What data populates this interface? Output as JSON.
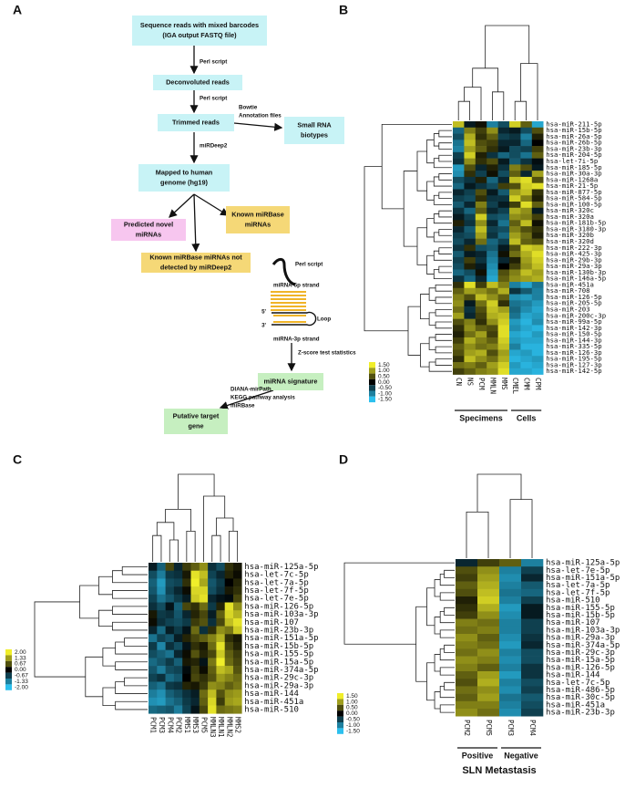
{
  "diagram": {
    "label": "A",
    "nodes": [
      {
        "lines": [
          "Sequence reads with mixed barcodes",
          "(IGA output FASTQ file)"
        ]
      },
      {
        "lines": [
          "Deconvoluted reads"
        ]
      },
      {
        "lines": [
          "Trimmed reads"
        ]
      },
      {
        "lines": [
          "Small RNA",
          "biotypes"
        ]
      },
      {
        "lines": [
          "Mapped to human",
          "genome (hg19)"
        ]
      },
      {
        "lines": [
          "Predicted novel",
          "miRNAs"
        ]
      },
      {
        "lines": [
          "Known miRBase",
          "miRNAs"
        ]
      },
      {
        "lines": [
          "Known miRBase miRNAs not",
          "detected by miRDeep2"
        ]
      },
      {
        "lines": [
          "miRNA signature"
        ]
      },
      {
        "lines": [
          "Putative target",
          "gene"
        ]
      }
    ],
    "edge_labels": [
      [
        "Perl script"
      ],
      [
        "Perl script"
      ],
      [
        "Bowtie",
        "Annotation files"
      ],
      [
        "miRDeep2"
      ],
      [
        "Perl script"
      ],
      [
        "Z-score test statistics"
      ],
      [
        "DIANA-mirPath",
        "KEGG pathway analysis",
        "miRBase"
      ]
    ],
    "hairpin_labels": [
      "miRNA-5p strand",
      "5'",
      "3'",
      "Loop",
      "miRNA-3p strand"
    ]
  },
  "chart_data": [
    {
      "type": "heatmap",
      "label": "B",
      "columns": [
        "CN",
        "NS",
        "PCM",
        "MMLN",
        "MMS",
        "CMEL",
        "CMM",
        "CPM"
      ],
      "rows": [
        "hsa-miR-211-5p",
        "hsa-miR-15b-5p",
        "hsa-miR-26a-5p",
        "hsa-miR-26b-5p",
        "hsa-miR-23b-3p",
        "hsa-miR-204-5p",
        "hsa-let-7i-5p",
        "hsa-miR-185-5p",
        "hsa-miR-30a-3p",
        "hsa-miR-1268a",
        "hsa-miR-21-5p",
        "hsa-miR-877-5p",
        "hsa-miR-584-5p",
        "hsa-miR-100-5p",
        "hsa-miR-320c",
        "hsa-miR-320a",
        "hsa-miR-181b-5p",
        "hsa-miR-3180-3p",
        "hsa-miR-320b",
        "hsa-miR-320d",
        "hsa-miR-222-3p",
        "hsa-miR-425-3p",
        "hsa-miR-29b-3p",
        "hsa-miR-29a-3p",
        "hsa-miR-130b-3p",
        "hsa-miR-146a-5p",
        "hsa-miR-451a",
        "hsa-miR-708",
        "hsa-miR-126-5p",
        "hsa-miR-205-5p",
        "hsa-miR-203",
        "hsa-miR-200c-3p",
        "hsa-miR-99a-5p",
        "hsa-miR-142-3p",
        "hsa-miR-150-5p",
        "hsa-miR-144-3p",
        "hsa-miR-335-5p",
        "hsa-miR-126-3p",
        "hsa-miR-195-5p",
        "hsa-miR-127-3p",
        "hsa-miR-142-5p"
      ],
      "values": [
        [
          1.2,
          -0.2,
          0.1,
          -1.0,
          -0.6,
          1.3,
          0.6,
          -1.3
        ],
        [
          -0.8,
          0.8,
          0.4,
          0.9,
          -0.3,
          -0.2,
          -0.6,
          0.5
        ],
        [
          -0.6,
          1.1,
          0.3,
          0.6,
          -0.5,
          -0.4,
          -1.0,
          0.2
        ],
        [
          -0.9,
          1.2,
          0.5,
          0.4,
          -0.3,
          -0.3,
          -0.8,
          0.0
        ],
        [
          -1.0,
          1.0,
          0.6,
          0.3,
          -0.2,
          -0.6,
          -0.5,
          0.4
        ],
        [
          -0.5,
          1.3,
          0.2,
          -0.4,
          -0.8,
          -0.6,
          -0.9,
          0.6
        ],
        [
          -0.4,
          0.9,
          0.3,
          0.5,
          -0.2,
          -0.7,
          -0.4,
          -0.1
        ],
        [
          -1.2,
          0.5,
          -0.3,
          0.2,
          -0.4,
          0.8,
          0.5,
          -0.2
        ],
        [
          -1.1,
          0.3,
          -0.5,
          0.1,
          -0.6,
          0.6,
          -0.3,
          1.0
        ],
        [
          -0.6,
          -0.4,
          0.2,
          -0.8,
          -0.3,
          1.2,
          1.4,
          0.5
        ],
        [
          -0.8,
          -0.2,
          -0.4,
          -0.6,
          0.4,
          0.5,
          1.3,
          1.4
        ],
        [
          -0.3,
          -0.5,
          0.5,
          -0.2,
          -0.7,
          1.0,
          1.2,
          0.3
        ],
        [
          -0.5,
          -0.6,
          0.3,
          -0.4,
          -0.4,
          1.3,
          0.8,
          0.2
        ],
        [
          -0.7,
          -0.3,
          0.8,
          -0.5,
          -0.2,
          0.4,
          1.4,
          0.6
        ],
        [
          -0.4,
          -0.8,
          0.6,
          -0.3,
          -0.5,
          1.1,
          0.9,
          -0.2
        ],
        [
          -0.2,
          -0.5,
          1.3,
          -0.6,
          -0.7,
          0.9,
          0.8,
          0.4
        ],
        [
          0.2,
          -0.4,
          0.9,
          -0.3,
          -0.9,
          0.6,
          1.2,
          0.1
        ],
        [
          -0.3,
          -0.7,
          1.2,
          -0.5,
          -0.6,
          0.8,
          0.5,
          0.3
        ],
        [
          -0.5,
          -0.6,
          1.0,
          -0.4,
          -0.8,
          1.0,
          0.7,
          0.2
        ],
        [
          -0.6,
          -0.3,
          0.7,
          -0.8,
          -0.5,
          1.2,
          0.6,
          0.5
        ],
        [
          -0.4,
          0.3,
          -0.6,
          -0.7,
          -0.2,
          0.5,
          1.3,
          1.2
        ],
        [
          -0.7,
          -0.2,
          -0.3,
          -0.9,
          0.1,
          0.7,
          1.1,
          1.4
        ],
        [
          -0.5,
          0.4,
          -0.4,
          -1.0,
          -0.3,
          0.2,
          1.0,
          1.3
        ],
        [
          -0.6,
          0.2,
          -0.2,
          -1.1,
          0.0,
          0.4,
          0.9,
          1.2
        ],
        [
          -0.8,
          -0.6,
          0.1,
          -1.2,
          0.5,
          0.8,
          1.2,
          1.0
        ],
        [
          -0.4,
          -0.8,
          -0.3,
          -1.3,
          0.6,
          0.9,
          1.0,
          1.1
        ],
        [
          0.3,
          1.4,
          0.4,
          1.2,
          0.8,
          -1.0,
          -1.3,
          -0.9
        ],
        [
          0.6,
          1.0,
          0.9,
          0.7,
          1.1,
          -0.4,
          -0.7,
          -1.0
        ],
        [
          0.8,
          0.5,
          1.2,
          0.9,
          0.6,
          -1.1,
          -1.2,
          -1.0
        ],
        [
          0.9,
          -0.2,
          0.7,
          1.3,
          0.3,
          -0.9,
          -1.0,
          -1.2
        ],
        [
          0.7,
          -0.4,
          0.5,
          1.2,
          1.0,
          -0.8,
          -1.1,
          -1.3
        ],
        [
          1.0,
          -0.3,
          0.4,
          1.1,
          1.2,
          -0.9,
          -1.3,
          -1.2
        ],
        [
          0.5,
          0.8,
          0.3,
          0.9,
          1.3,
          -1.2,
          -1.4,
          -1.1
        ],
        [
          0.3,
          0.9,
          0.6,
          0.5,
          1.4,
          -1.1,
          -1.3,
          -1.4
        ],
        [
          0.2,
          0.7,
          1.0,
          0.4,
          1.4,
          -1.3,
          -1.4,
          -1.2
        ],
        [
          0.4,
          1.1,
          0.8,
          0.6,
          1.3,
          -1.2,
          -1.3,
          -1.3
        ],
        [
          0.6,
          0.9,
          0.7,
          0.8,
          1.2,
          -1.0,
          -1.4,
          -1.4
        ],
        [
          0.5,
          1.0,
          1.1,
          0.5,
          1.0,
          -1.3,
          -1.2,
          -1.4
        ],
        [
          0.3,
          1.2,
          0.9,
          0.7,
          1.1,
          -1.4,
          -1.3,
          -1.2
        ],
        [
          0.7,
          0.8,
          0.6,
          1.0,
          1.3,
          -1.2,
          -1.4,
          -1.3
        ],
        [
          0.4,
          0.6,
          0.8,
          0.9,
          1.4,
          -1.3,
          -1.3,
          -1.4
        ]
      ],
      "zlim": [
        -1.5,
        1.5
      ],
      "colors": [
        "#2cc0ee",
        "#000000",
        "#f0ee2a"
      ],
      "colorbar_ticks": [
        {
          "value": 1.5,
          "label": "1.50"
        },
        {
          "value": 1,
          "label": "1.00"
        },
        {
          "value": 0.5,
          "label": "0.50"
        },
        {
          "value": 0,
          "label": "0.00"
        },
        {
          "value": -0.5,
          "label": "-0.50"
        },
        {
          "value": -1,
          "label": "-1.00"
        },
        {
          "value": -1.5,
          "label": "-1.50"
        }
      ],
      "groups": [
        {
          "name": "Specimens",
          "columns": [
            "CN",
            "NS",
            "PCM",
            "MMLN",
            "MMS"
          ]
        },
        {
          "name": "Cells",
          "columns": [
            "CMEL",
            "CMM",
            "CPM"
          ]
        }
      ]
    },
    {
      "type": "heatmap",
      "label": "C",
      "columns": [
        "PCM1",
        "PCM3",
        "PCM4",
        "PCM2",
        "MMS1",
        "MMS3",
        "PCM5",
        "MMLN3",
        "MMLN1",
        "MMLN2",
        "MMS2"
      ],
      "rows": [
        "hsa-miR-125a-5p",
        "hsa-let-7c-5p",
        "hsa-let-7a-5p",
        "hsa-let-7f-5p",
        "hsa-let-7e-5p",
        "hsa-miR-126-5p",
        "hsa-miR-103a-3p",
        "hsa-miR-107",
        "hsa-miR-23b-3p",
        "hsa-miR-151a-5p",
        "hsa-miR-15b-5p",
        "hsa-miR-155-5p",
        "hsa-miR-15a-5p",
        "hsa-miR-374a-5p",
        "hsa-miR-29c-3p",
        "hsa-miR-29a-3p",
        "hsa-miR-144",
        "hsa-miR-451a",
        "hsa-miR-510"
      ],
      "values": [
        [
          -0.3,
          -1.0,
          0.6,
          -0.4,
          0.5,
          0.8,
          1.2,
          -0.5,
          -0.8,
          0.4,
          0.2
        ],
        [
          -0.8,
          -1.3,
          -0.6,
          -0.5,
          0.2,
          1.9,
          1.6,
          -0.7,
          -0.4,
          0.3,
          0.1
        ],
        [
          -1.0,
          -1.6,
          -0.8,
          -0.7,
          0.4,
          2.0,
          1.4,
          -0.9,
          -0.6,
          0.0,
          0.3
        ],
        [
          -0.9,
          -1.5,
          -0.7,
          -0.4,
          0.1,
          1.8,
          1.8,
          -0.8,
          -0.5,
          0.2,
          0.4
        ],
        [
          -0.7,
          -1.2,
          -0.9,
          -0.6,
          -0.3,
          1.7,
          1.9,
          -0.4,
          -0.2,
          -0.1,
          0.6
        ],
        [
          -0.5,
          -0.8,
          -0.2,
          -1.0,
          0.6,
          0.4,
          0.9,
          -0.6,
          0.3,
          1.9,
          1.2
        ],
        [
          0.2,
          -0.6,
          -0.5,
          -0.9,
          -0.4,
          0.3,
          0.6,
          -0.3,
          0.8,
          1.8,
          1.5
        ],
        [
          0.1,
          -0.5,
          -0.7,
          -0.8,
          -0.6,
          0.5,
          0.7,
          -0.5,
          0.6,
          1.6,
          1.9
        ],
        [
          -0.4,
          -1.1,
          -0.3,
          -0.6,
          -0.2,
          0.9,
          -0.5,
          0.4,
          1.2,
          1.0,
          1.7
        ],
        [
          -1.2,
          -0.7,
          -0.9,
          -0.3,
          0.3,
          0.6,
          0.8,
          1.1,
          1.5,
          0.4,
          0.2
        ],
        [
          -0.6,
          -1.4,
          -0.5,
          -0.8,
          -0.2,
          0.4,
          0.2,
          0.9,
          1.9,
          0.6,
          0.3
        ],
        [
          -0.8,
          -1.0,
          -1.2,
          -0.4,
          0.1,
          0.7,
          0.3,
          0.6,
          1.7,
          0.8,
          0.5
        ],
        [
          -1.1,
          -0.9,
          -0.6,
          -1.0,
          0.2,
          0.3,
          -0.2,
          1.0,
          2.0,
          0.9,
          0.6
        ],
        [
          -0.9,
          -1.3,
          -0.8,
          -0.7,
          -0.1,
          0.5,
          0.1,
          0.8,
          1.6,
          1.4,
          0.7
        ],
        [
          -0.7,
          -0.5,
          -1.1,
          -0.9,
          0.0,
          0.6,
          0.4,
          0.7,
          1.3,
          1.1,
          0.9
        ],
        [
          -1.0,
          -1.2,
          -0.6,
          -0.5,
          0.3,
          0.2,
          0.5,
          1.2,
          1.1,
          0.8,
          1.0
        ],
        [
          -1.3,
          -1.5,
          -1.0,
          -0.8,
          -0.5,
          -0.3,
          0.9,
          1.6,
          0.7,
          1.2,
          1.3
        ],
        [
          -1.5,
          -1.6,
          -1.2,
          -1.0,
          -0.6,
          -0.4,
          0.8,
          1.8,
          0.5,
          1.3,
          1.4
        ],
        [
          -1.1,
          -1.0,
          -0.9,
          -1.3,
          -0.7,
          -0.2,
          0.6,
          1.9,
          0.9,
          1.0,
          1.1
        ]
      ],
      "zlim": [
        -2,
        2
      ],
      "colors": [
        "#2cc0ee",
        "#000000",
        "#f0ee2a"
      ],
      "colorbar_ticks": [
        {
          "value": 2,
          "label": "2.00"
        },
        {
          "value": 1.33,
          "label": "1.33"
        },
        {
          "value": 0.67,
          "label": "0.67"
        },
        {
          "value": 0,
          "label": "0.00"
        },
        {
          "value": -0.67,
          "label": "-0.67"
        },
        {
          "value": -1.33,
          "label": "-1.33"
        },
        {
          "value": -2,
          "label": "-2.00"
        }
      ]
    },
    {
      "type": "heatmap",
      "label": "D",
      "columns": [
        "PCM2",
        "PCM5",
        "PCM3",
        "PCM4"
      ],
      "rows": [
        "hsa-miR-125a-5p",
        "hsa-let-7e-5p",
        "hsa-miR-151a-5p",
        "hsa-let-7a-5p",
        "hsa-let-7f-5p",
        "hsa-miR-510",
        "hsa-miR-155-5p",
        "hsa-miR-15b-5p",
        "hsa-miR-107",
        "hsa-miR-103a-3p",
        "hsa-miR-29a-3p",
        "hsa-miR-374a-5p",
        "hsa-miR-29c-3p",
        "hsa-miR-15a-5p",
        "hsa-miR-126-5p",
        "hsa-miR-144",
        "hsa-let-7c-5p",
        "hsa-miR-486-5p",
        "hsa-miR-30c-5p",
        "hsa-miR-451a",
        "hsa-miR-23b-3p"
      ],
      "values": [
        [
          -0.3,
          0.4,
          0.6,
          -1.0
        ],
        [
          0.5,
          0.9,
          -1.0,
          -0.5
        ],
        [
          0.4,
          1.0,
          -1.1,
          -0.3
        ],
        [
          0.6,
          1.1,
          -1.0,
          -0.7
        ],
        [
          0.5,
          1.2,
          -0.9,
          -0.8
        ],
        [
          0.2,
          1.3,
          -1.0,
          -0.5
        ],
        [
          0.3,
          1.1,
          -1.2,
          -0.2
        ],
        [
          0.4,
          0.9,
          -1.1,
          -0.2
        ],
        [
          0.8,
          0.7,
          -1.0,
          -0.5
        ],
        [
          0.7,
          0.8,
          -1.0,
          -0.5
        ],
        [
          0.9,
          0.6,
          -1.1,
          -0.4
        ],
        [
          0.8,
          0.7,
          -1.2,
          -0.3
        ],
        [
          0.7,
          0.9,
          -1.0,
          -0.6
        ],
        [
          0.9,
          0.8,
          -1.1,
          -0.6
        ],
        [
          0.8,
          0.6,
          -1.0,
          -0.4
        ],
        [
          0.6,
          1.0,
          -1.2,
          -0.4
        ],
        [
          0.5,
          1.1,
          -1.0,
          -0.6
        ],
        [
          0.7,
          0.9,
          -1.1,
          -0.5
        ],
        [
          0.6,
          1.0,
          -0.9,
          -0.7
        ],
        [
          0.8,
          0.8,
          -1.0,
          -0.6
        ],
        [
          0.9,
          0.7,
          -1.1,
          -0.5
        ]
      ],
      "zlim": [
        -1.5,
        1.5
      ],
      "colors": [
        "#2cc0ee",
        "#000000",
        "#f0ee2a"
      ],
      "colorbar_ticks": [
        {
          "value": 1.5,
          "label": "1.50"
        },
        {
          "value": 1,
          "label": "1.00"
        },
        {
          "value": 0.5,
          "label": "0.50"
        },
        {
          "value": 0,
          "label": "0.00"
        },
        {
          "value": -0.5,
          "label": "-0.50"
        },
        {
          "value": -1,
          "label": "-1.00"
        },
        {
          "value": -1.5,
          "label": "-1.50"
        }
      ],
      "groups": [
        {
          "name": "Positive",
          "columns": [
            "PCM2",
            "PCM5"
          ]
        },
        {
          "name": "Negative",
          "columns": [
            "PCM3",
            "PCM4"
          ]
        }
      ],
      "group_title": "SLN Metastasis"
    }
  ]
}
